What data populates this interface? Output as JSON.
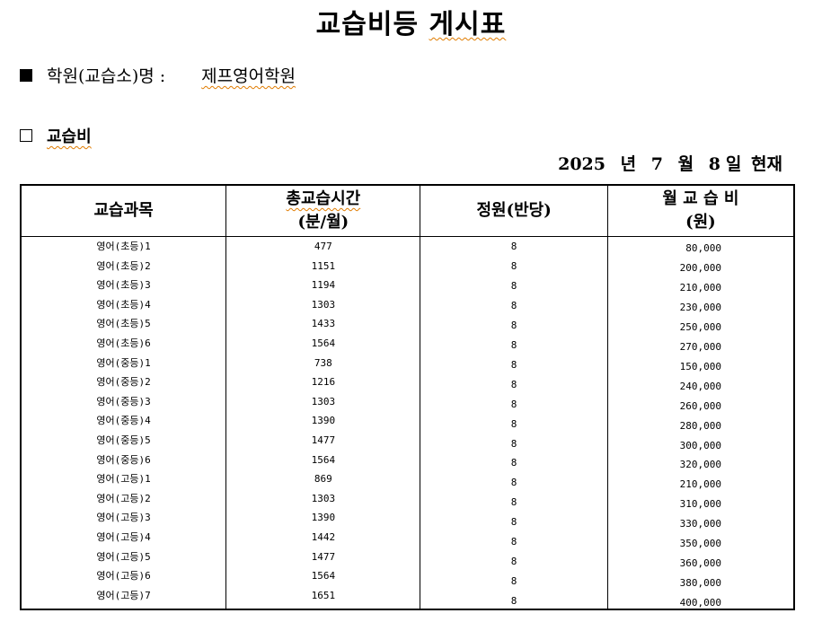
{
  "title_part1": "교습비등",
  "title_part2": "게시표",
  "academy": {
    "label": "학원(교습소)명 :",
    "name": "제프영어학원"
  },
  "section": {
    "label": "교습비"
  },
  "date": {
    "year": "2025",
    "year_unit": "년",
    "month": "7",
    "month_unit": "월",
    "day": "8",
    "day_unit": "일",
    "suffix": "현재"
  },
  "table": {
    "headers": [
      {
        "line1": "교습과목",
        "line2": ""
      },
      {
        "line1": "총교습시간",
        "line2": "(분/월)"
      },
      {
        "line1": "정원(반당)",
        "line2": ""
      },
      {
        "line1": "월 교 습 비",
        "line2": "(원)"
      }
    ],
    "rows": [
      [
        "영어(초등)1",
        "477",
        "8",
        "80,000"
      ],
      [
        "영어(초등)2",
        "1151",
        "8",
        "200,000"
      ],
      [
        "영어(초등)3",
        "1194",
        "8",
        "210,000"
      ],
      [
        "영어(초등)4",
        "1303",
        "8",
        "230,000"
      ],
      [
        "영어(초등)5",
        "1433",
        "8",
        "250,000"
      ],
      [
        "영어(초등)6",
        "1564",
        "8",
        "270,000"
      ],
      [
        "영어(중등)1",
        "738",
        "8",
        "150,000"
      ],
      [
        "영어(중등)2",
        "1216",
        "8",
        "240,000"
      ],
      [
        "영어(중등)3",
        "1303",
        "8",
        "260,000"
      ],
      [
        "영어(중등)4",
        "1390",
        "8",
        "280,000"
      ],
      [
        "영어(중등)5",
        "1477",
        "8",
        "300,000"
      ],
      [
        "영어(중등)6",
        "1564",
        "8",
        "320,000"
      ],
      [
        "영어(고등)1",
        "869",
        "8",
        "210,000"
      ],
      [
        "영어(고등)2",
        "1303",
        "8",
        "310,000"
      ],
      [
        "영어(고등)3",
        "1390",
        "8",
        "330,000"
      ],
      [
        "영어(고등)4",
        "1442",
        "8",
        "350,000"
      ],
      [
        "영어(고등)5",
        "1477",
        "8",
        "360,000"
      ],
      [
        "영어(고등)6",
        "1564",
        "8",
        "380,000"
      ],
      [
        "영어(고등)7",
        "1651",
        "8",
        "400,000"
      ]
    ]
  }
}
